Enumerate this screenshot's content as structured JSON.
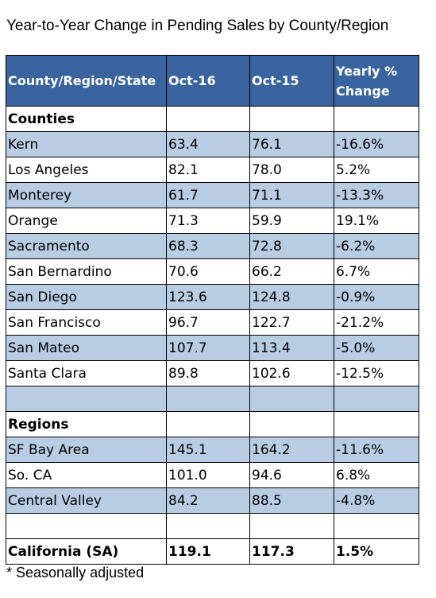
{
  "title": "Year-to-Year Change in Pending Sales by County/Region",
  "header": [
    "County/Region/State",
    "Oct-16",
    "Oct-15",
    "Yearly % Change"
  ],
  "rows": [
    {
      "cells": [
        "Counties",
        "",
        "",
        ""
      ],
      "style": "section"
    },
    {
      "cells": [
        "Kern",
        "63.4",
        "76.1",
        "-16.6%"
      ],
      "style": "shaded"
    },
    {
      "cells": [
        "Los Angeles",
        "82.1",
        "78.0",
        "5.2%"
      ],
      "style": "plain"
    },
    {
      "cells": [
        "Monterey",
        "61.7",
        "71.1",
        "-13.3%"
      ],
      "style": "shaded"
    },
    {
      "cells": [
        "Orange",
        "71.3",
        "59.9",
        "19.1%"
      ],
      "style": "plain"
    },
    {
      "cells": [
        "Sacramento",
        "68.3",
        "72.8",
        "-6.2%"
      ],
      "style": "shaded"
    },
    {
      "cells": [
        "San Bernardino",
        "70.6",
        "66.2",
        "6.7%"
      ],
      "style": "plain"
    },
    {
      "cells": [
        "San Diego",
        "123.6",
        "124.8",
        "-0.9%"
      ],
      "style": "shaded"
    },
    {
      "cells": [
        "San Francisco",
        "96.7",
        "122.7",
        "-21.2%"
      ],
      "style": "plain"
    },
    {
      "cells": [
        "San Mateo",
        "107.7",
        "113.4",
        "-5.0%"
      ],
      "style": "shaded"
    },
    {
      "cells": [
        "Santa Clara",
        "89.8",
        "102.6",
        "-12.5%"
      ],
      "style": "plain"
    },
    {
      "cells": [
        "",
        "",
        "",
        ""
      ],
      "style": "shaded"
    },
    {
      "cells": [
        "Regions",
        "",
        "",
        ""
      ],
      "style": "section"
    },
    {
      "cells": [
        "SF Bay Area",
        "145.1",
        "164.2",
        "-11.6%"
      ],
      "style": "shaded"
    },
    {
      "cells": [
        "So. CA",
        "101.0",
        "94.6",
        "6.8%"
      ],
      "style": "plain"
    },
    {
      "cells": [
        "Central Valley",
        "84.2",
        "88.5",
        "-4.8%"
      ],
      "style": "shaded"
    },
    {
      "cells": [
        "",
        "",
        "",
        ""
      ],
      "style": "plain"
    },
    {
      "cells": [
        "California (SA)",
        "119.1",
        "117.3",
        "1.5%"
      ],
      "style": "total"
    }
  ],
  "footnote": "* Seasonally adjusted",
  "colors": {
    "header_bg": "#3a649f",
    "shaded_row": "#b8cce4"
  }
}
